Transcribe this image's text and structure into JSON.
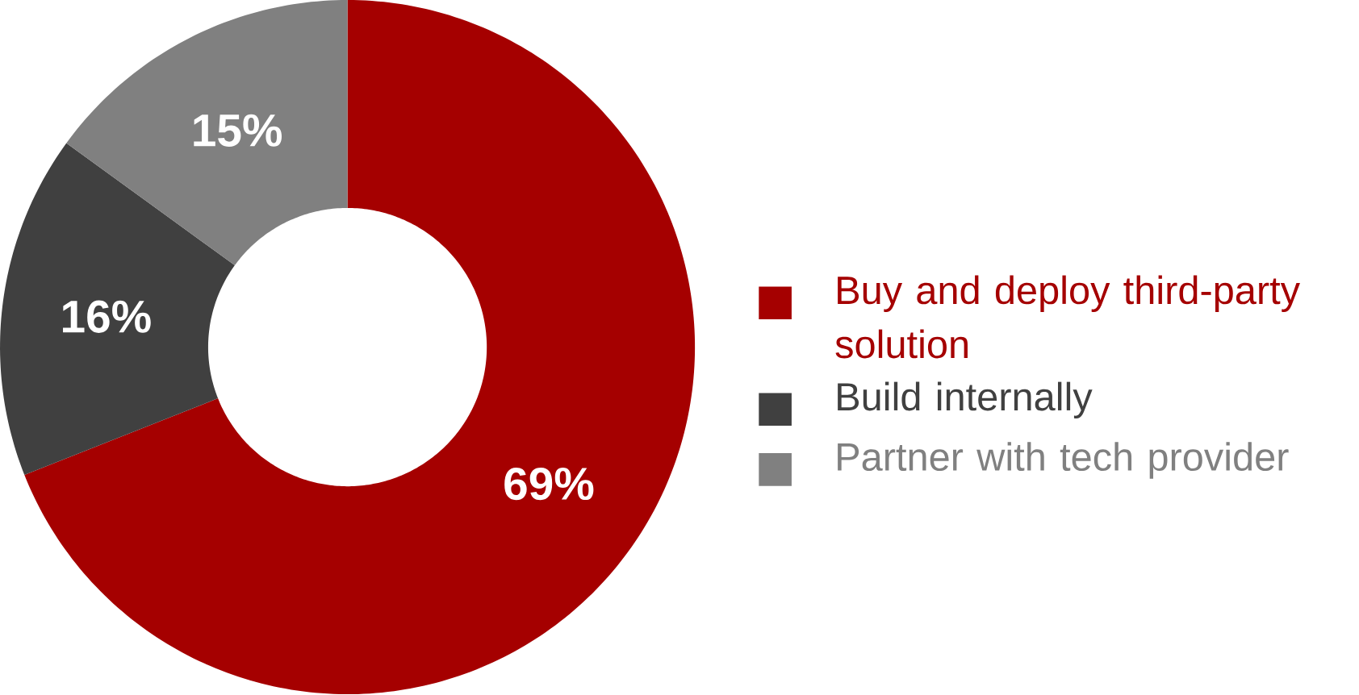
{
  "chart_data": {
    "type": "donut",
    "categories": [
      "Buy and deploy third-party solution",
      "Build internally",
      "Partner with tech provider"
    ],
    "values": [
      69,
      16,
      15
    ],
    "colors": [
      "#a50000",
      "#404040",
      "#808080"
    ],
    "value_labels": [
      "69%",
      "16%",
      "15%"
    ],
    "legend": "right"
  }
}
